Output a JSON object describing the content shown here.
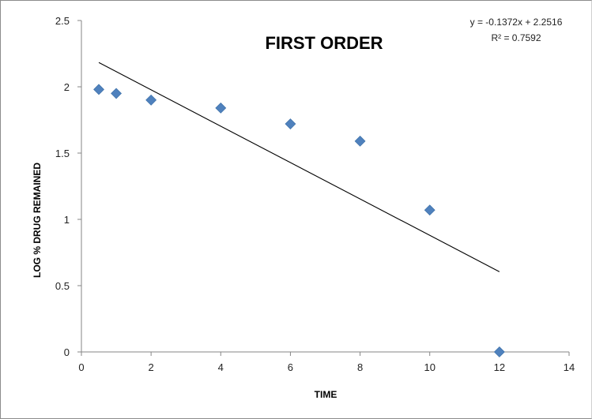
{
  "chart_data": {
    "type": "scatter",
    "title": "FIRST ORDER",
    "xlabel": "TIME",
    "ylabel": "LOG % DRUG REMAINED",
    "xlim": [
      0,
      14
    ],
    "ylim": [
      0,
      2.5
    ],
    "x_ticks": [
      "0",
      "2",
      "4",
      "6",
      "8",
      "10",
      "12",
      "14"
    ],
    "y_ticks": [
      "0",
      "0.5",
      "1",
      "1.5",
      "2",
      "2.5"
    ],
    "grid": false,
    "legend": "none",
    "marker_color": "#4f81bd",
    "trendline_color": "#000000",
    "points": [
      {
        "x": 0.5,
        "y": 1.98
      },
      {
        "x": 1,
        "y": 1.95
      },
      {
        "x": 2,
        "y": 1.9
      },
      {
        "x": 4,
        "y": 1.84
      },
      {
        "x": 6,
        "y": 1.72
      },
      {
        "x": 8,
        "y": 1.59
      },
      {
        "x": 10,
        "y": 1.07
      },
      {
        "x": 12,
        "y": 0
      }
    ],
    "trendline": {
      "type": "linear",
      "slope": -0.1372,
      "intercept": 2.2516,
      "x_range": [
        0.5,
        12
      ],
      "equation_label": "y = -0.1372x + 2.2516",
      "r2_label": "R² = 0.7592"
    }
  }
}
